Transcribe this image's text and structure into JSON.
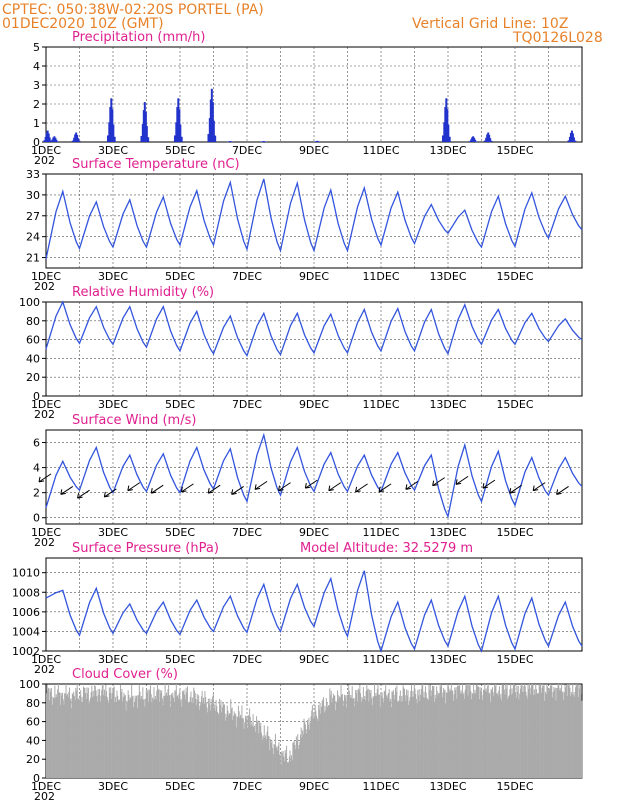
{
  "header": {
    "station": "CPTEC:   050:38W-02:20S   PORTEL (PA)",
    "datetime": "01DEC2020 10Z (GMT)",
    "grid_note": "Vertical Grid Line: 10Z",
    "code": "TQ0126L028"
  },
  "x_axis": {
    "days": 16,
    "labels": [
      "1DEC",
      "3DEC",
      "5DEC",
      "7DEC",
      "9DEC",
      "11DEC",
      "13DEC",
      "15DEC"
    ],
    "label_days": [
      0,
      2,
      4,
      6,
      8,
      10,
      12,
      14
    ],
    "partial_label": "202"
  },
  "colors": {
    "line": "#3355dd",
    "bar": "#2233cc",
    "cloud": "#aaaaaa",
    "title": "#e0208f",
    "header": "#e8822a"
  },
  "chart_data": [
    {
      "type": "bar",
      "title": "Precipitation (mm/h)",
      "ylim": [
        0,
        5
      ],
      "yticks": [
        0,
        1,
        2,
        3,
        4,
        5
      ],
      "bursts": [
        {
          "day": 0.05,
          "peak": 0.6
        },
        {
          "day": 0.25,
          "peak": 0.3
        },
        {
          "day": 0.9,
          "peak": 0.5
        },
        {
          "day": 1.95,
          "peak": 2.3
        },
        {
          "day": 2.95,
          "peak": 2.1
        },
        {
          "day": 3.95,
          "peak": 2.3
        },
        {
          "day": 4.95,
          "peak": 2.8
        },
        {
          "day": 5.5,
          "peak": 0.05
        },
        {
          "day": 6.5,
          "peak": 0.05
        },
        {
          "day": 8.1,
          "peak": 0.06
        },
        {
          "day": 11.95,
          "peak": 2.3
        },
        {
          "day": 12.75,
          "peak": 0.3
        },
        {
          "day": 13.2,
          "peak": 0.5
        },
        {
          "day": 15.7,
          "peak": 0.6
        }
      ]
    },
    {
      "type": "line",
      "title": "Surface Temperature (nC)",
      "ylim": [
        19.5,
        33
      ],
      "yticks": [
        21,
        24,
        27,
        30,
        33
      ],
      "daily_min": [
        20.8,
        22.3,
        22.5,
        22.5,
        22.8,
        22.8,
        22.2,
        22.0,
        22.0,
        22.0,
        22.8,
        23.0,
        24.5,
        22.5,
        22.6,
        23.8,
        25.0
      ],
      "daily_max": [
        30.5,
        29.0,
        29.3,
        29.7,
        30.6,
        31.8,
        32.3,
        31.7,
        30.7,
        31.0,
        30.4,
        28.6,
        27.8,
        29.8,
        30.3,
        29.8,
        28.0
      ]
    },
    {
      "type": "line",
      "title": "Relative Humidity (%)",
      "ylim": [
        0,
        100
      ],
      "yticks": [
        0,
        20,
        40,
        60,
        80,
        100
      ],
      "daily_min": [
        50,
        56,
        55,
        52,
        48,
        45,
        43,
        44,
        46,
        46,
        48,
        48,
        45,
        55,
        55,
        58,
        60
      ],
      "daily_max": [
        100,
        95,
        95,
        95,
        90,
        85,
        88,
        88,
        87,
        92,
        93,
        92,
        97,
        92,
        88,
        82,
        82
      ]
    },
    {
      "type": "line",
      "title": "Surface Wind (m/s)",
      "ylim": [
        -0.5,
        7
      ],
      "yticks": [
        0,
        2,
        4,
        6
      ],
      "daily_min": [
        0.8,
        2.2,
        2.0,
        2.1,
        2.0,
        2.3,
        1.3,
        1.8,
        2.1,
        2.1,
        2.1,
        2.2,
        0.1,
        1.3,
        1.0,
        1.8,
        2.5
      ],
      "daily_max": [
        4.5,
        5.6,
        5.0,
        5.1,
        5.6,
        5.5,
        6.6,
        5.6,
        5.2,
        5.0,
        5.2,
        5.0,
        5.8,
        5.3,
        4.8,
        4.8,
        3.2
      ],
      "vectors": [
        {
          "day": 0.15,
          "y": 3.5
        },
        {
          "day": 0.8,
          "y": 2.5
        },
        {
          "day": 1.3,
          "y": 2.2
        },
        {
          "day": 2.1,
          "y": 2.3
        },
        {
          "day": 2.8,
          "y": 2.8
        },
        {
          "day": 3.5,
          "y": 2.6
        },
        {
          "day": 4.4,
          "y": 2.7
        },
        {
          "day": 5.2,
          "y": 2.6
        },
        {
          "day": 5.9,
          "y": 2.5
        },
        {
          "day": 6.6,
          "y": 2.9
        },
        {
          "day": 7.3,
          "y": 2.8
        },
        {
          "day": 8.1,
          "y": 3.0
        },
        {
          "day": 8.8,
          "y": 2.8
        },
        {
          "day": 9.6,
          "y": 2.7
        },
        {
          "day": 10.3,
          "y": 2.7
        },
        {
          "day": 11.1,
          "y": 2.9
        },
        {
          "day": 11.9,
          "y": 3.2
        },
        {
          "day": 12.6,
          "y": 3.3
        },
        {
          "day": 13.4,
          "y": 3.0
        },
        {
          "day": 14.2,
          "y": 2.6
        },
        {
          "day": 14.9,
          "y": 2.8
        },
        {
          "day": 15.6,
          "y": 2.5
        }
      ]
    },
    {
      "type": "line",
      "title": "Surface Pressure (hPa)",
      "subtitle": "Model Altitude: 32.5279 m",
      "ylim": [
        1002,
        1011.5
      ],
      "yticks": [
        1002,
        1004,
        1006,
        1008,
        1010
      ],
      "daily_min": [
        1007.4,
        1003.6,
        1003.8,
        1003.8,
        1003.7,
        1004.0,
        1003.9,
        1004.0,
        1004.5,
        1003.5,
        1002.0,
        1002.2,
        1002.5,
        1002.0,
        1002.2,
        1002.5,
        1002.5
      ],
      "daily_max": [
        1008.2,
        1008.4,
        1006.8,
        1007.0,
        1007.2,
        1007.6,
        1008.8,
        1008.8,
        1009.4,
        1010.2,
        1007.0,
        1007.2,
        1007.6,
        1007.6,
        1007.4,
        1007.0,
        1005.0
      ]
    },
    {
      "type": "area",
      "title": "Cloud Cover (%)",
      "ylim": [
        0,
        100
      ],
      "yticks": [
        0,
        20,
        40,
        60,
        80,
        100
      ],
      "profile": [
        {
          "day": 0,
          "value": 90
        },
        {
          "day": 0.8,
          "value": 88
        },
        {
          "day": 1.7,
          "value": 92
        },
        {
          "day": 2.5,
          "value": 85
        },
        {
          "day": 3.3,
          "value": 90
        },
        {
          "day": 4.2,
          "value": 88
        },
        {
          "day": 4.9,
          "value": 80
        },
        {
          "day": 5.5,
          "value": 70
        },
        {
          "day": 6.2,
          "value": 60
        },
        {
          "day": 6.8,
          "value": 35
        },
        {
          "day": 7.2,
          "value": 20
        },
        {
          "day": 7.5,
          "value": 40
        },
        {
          "day": 7.9,
          "value": 65
        },
        {
          "day": 8.5,
          "value": 85
        },
        {
          "day": 9.5,
          "value": 90
        },
        {
          "day": 10.5,
          "value": 88
        },
        {
          "day": 11.5,
          "value": 92
        },
        {
          "day": 12.5,
          "value": 95
        },
        {
          "day": 13.5,
          "value": 93
        },
        {
          "day": 14.5,
          "value": 96
        },
        {
          "day": 15.5,
          "value": 95
        },
        {
          "day": 16,
          "value": 94
        }
      ]
    }
  ]
}
